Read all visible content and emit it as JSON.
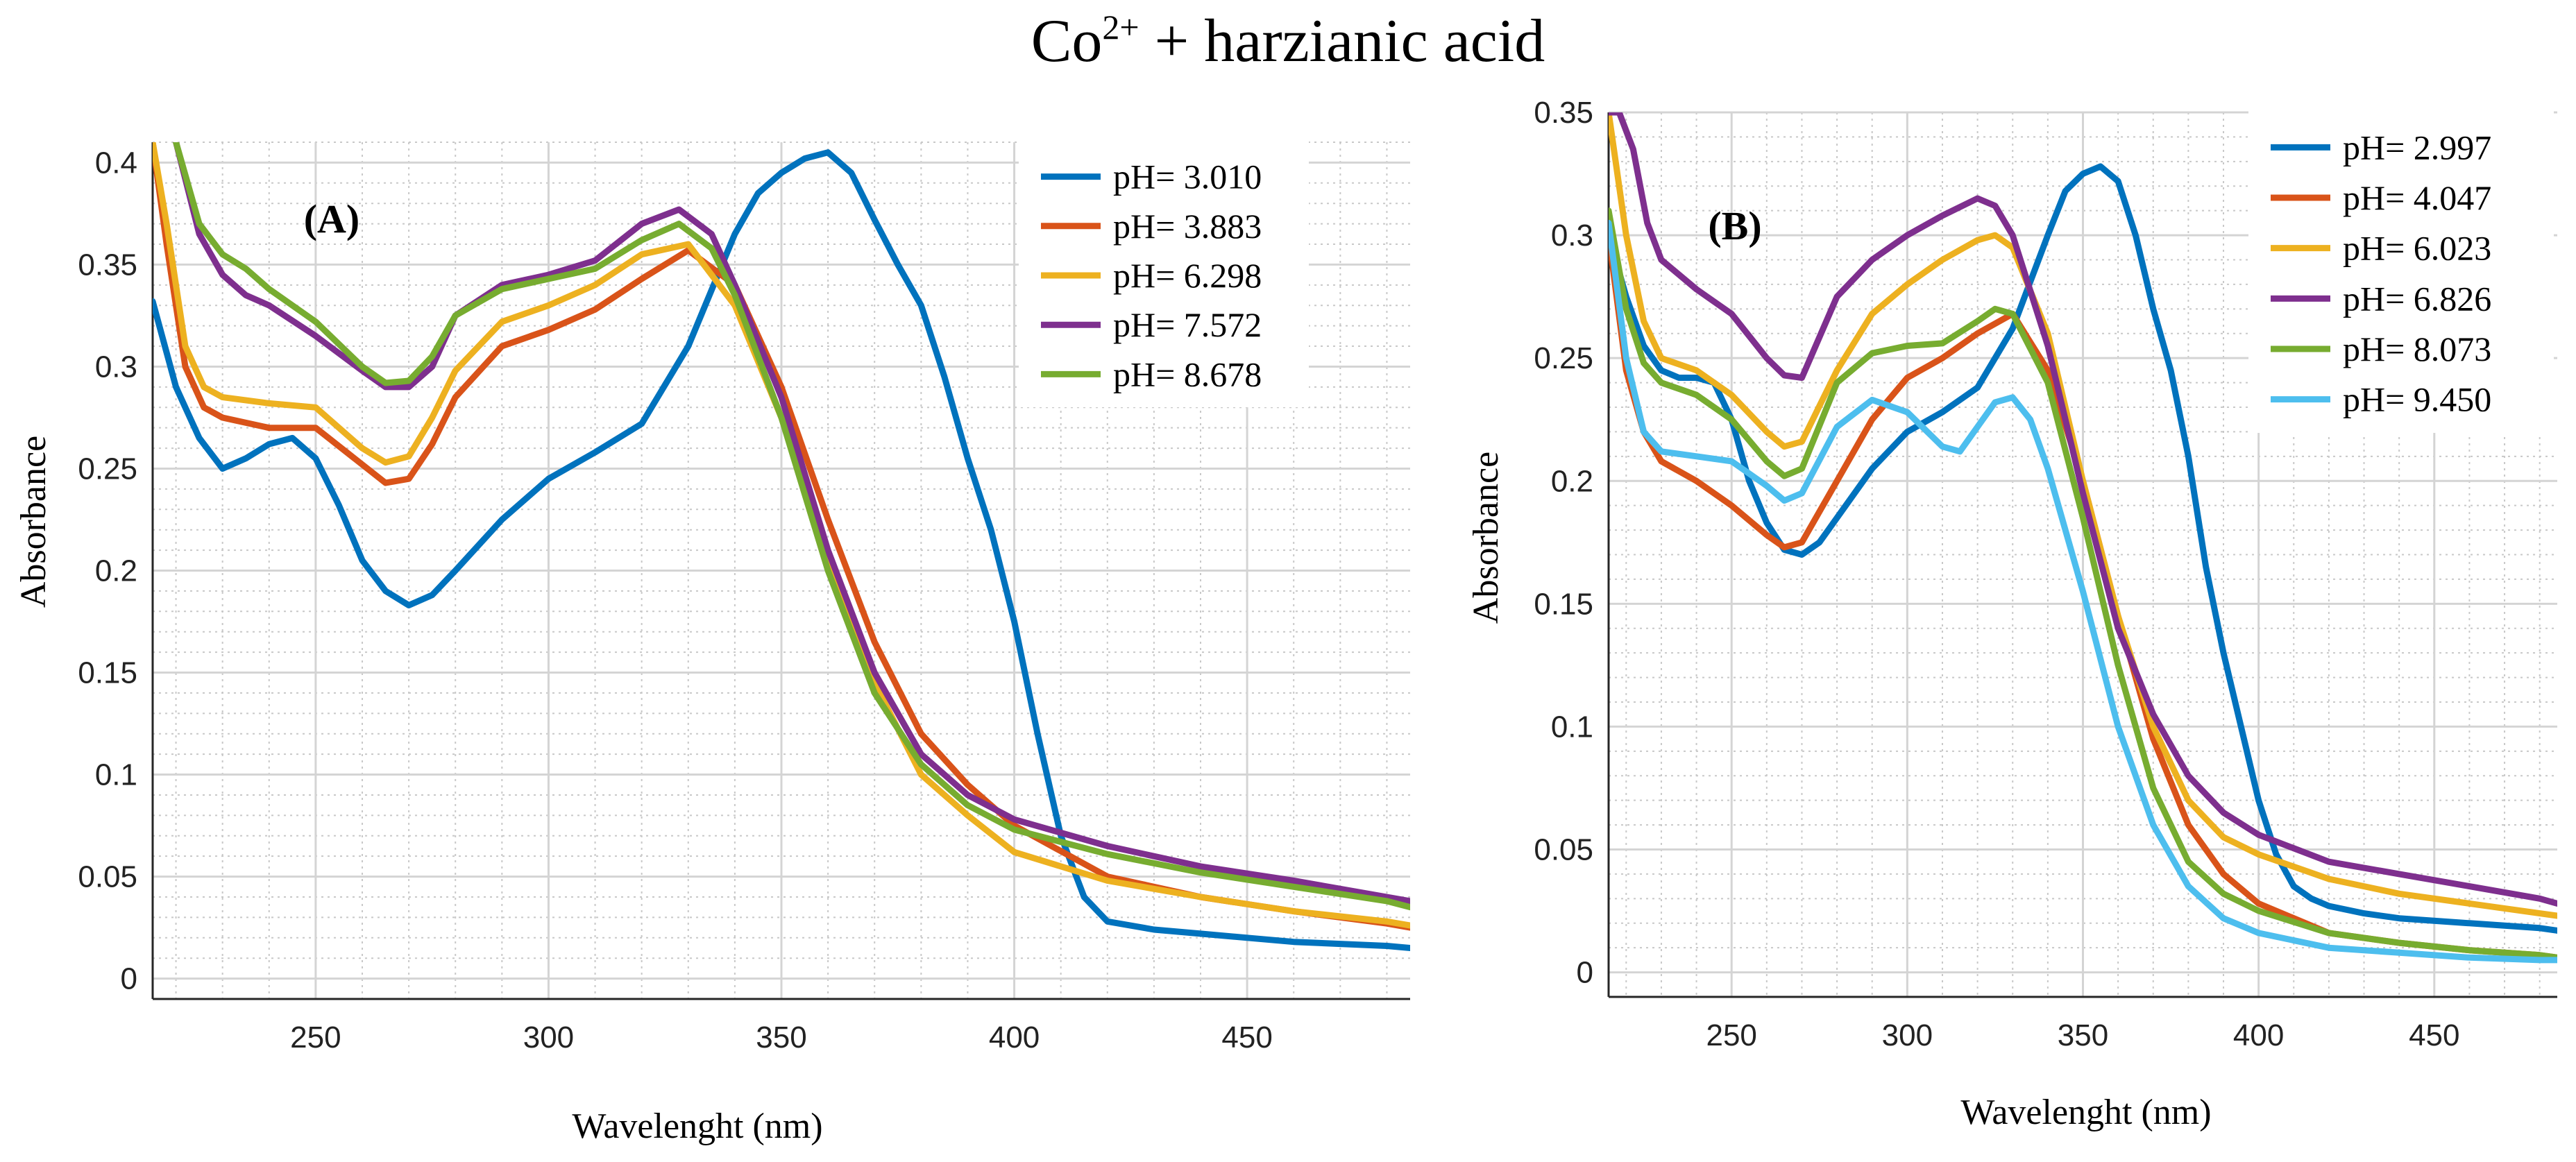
{
  "title": {
    "main": "Co",
    "sup": "2+",
    "rest": " + harzianic acid"
  },
  "chart_data": [
    {
      "type": "line",
      "panel_label": "(A)",
      "xlabel": "Wavelenght (nm)",
      "ylabel": "Absorbance",
      "xlim": [
        215,
        485
      ],
      "ylim": [
        -0.01,
        0.41
      ],
      "xticks": [
        250,
        300,
        350,
        400,
        450
      ],
      "yticks": [
        0,
        0.05,
        0.1,
        0.15,
        0.2,
        0.25,
        0.3,
        0.35,
        0.4
      ],
      "ytick_labels": [
        "0",
        "0.05",
        "0.1",
        "0.15",
        "0.2",
        "0.25",
        "0.3",
        "0.35",
        "0.4"
      ],
      "grid": true,
      "legend_position": "top-right",
      "series": [
        {
          "name": "pH= 3.010",
          "color": "#0072BD",
          "x": [
            215,
            220,
            225,
            230,
            235,
            240,
            245,
            250,
            255,
            260,
            265,
            270,
            275,
            280,
            290,
            300,
            310,
            320,
            330,
            340,
            345,
            350,
            355,
            360,
            365,
            370,
            375,
            380,
            385,
            390,
            395,
            400,
            405,
            410,
            415,
            420,
            430,
            440,
            450,
            460,
            470,
            480,
            485
          ],
          "y": [
            0.332,
            0.29,
            0.265,
            0.25,
            0.255,
            0.262,
            0.265,
            0.255,
            0.232,
            0.205,
            0.19,
            0.183,
            0.188,
            0.2,
            0.225,
            0.245,
            0.258,
            0.272,
            0.31,
            0.365,
            0.385,
            0.395,
            0.402,
            0.405,
            0.395,
            0.372,
            0.35,
            0.33,
            0.295,
            0.255,
            0.22,
            0.175,
            0.12,
            0.07,
            0.04,
            0.028,
            0.024,
            0.022,
            0.02,
            0.018,
            0.017,
            0.016,
            0.015
          ]
        },
        {
          "name": "pH= 3.883",
          "color": "#D95319",
          "x": [
            215,
            218,
            222,
            226,
            230,
            240,
            250,
            260,
            265,
            270,
            275,
            280,
            290,
            300,
            310,
            320,
            330,
            340,
            350,
            360,
            370,
            380,
            390,
            400,
            420,
            440,
            460,
            480,
            485
          ],
          "y": [
            0.41,
            0.36,
            0.3,
            0.28,
            0.275,
            0.27,
            0.27,
            0.252,
            0.243,
            0.245,
            0.262,
            0.285,
            0.31,
            0.318,
            0.328,
            0.343,
            0.357,
            0.34,
            0.29,
            0.225,
            0.165,
            0.12,
            0.095,
            0.075,
            0.05,
            0.04,
            0.033,
            0.027,
            0.025
          ]
        },
        {
          "name": "pH= 6.298",
          "color": "#EDB120",
          "x": [
            215,
            218,
            222,
            226,
            230,
            240,
            250,
            260,
            265,
            270,
            275,
            280,
            290,
            300,
            310,
            320,
            330,
            340,
            350,
            360,
            370,
            380,
            390,
            400,
            420,
            440,
            460,
            480,
            485
          ],
          "y": [
            0.41,
            0.37,
            0.31,
            0.29,
            0.285,
            0.282,
            0.28,
            0.26,
            0.253,
            0.256,
            0.275,
            0.298,
            0.322,
            0.33,
            0.34,
            0.355,
            0.36,
            0.33,
            0.275,
            0.205,
            0.145,
            0.1,
            0.08,
            0.062,
            0.048,
            0.04,
            0.033,
            0.028,
            0.026
          ]
        },
        {
          "name": "pH= 7.572",
          "color": "#7E2F8E",
          "x": [
            220,
            225,
            230,
            235,
            240,
            250,
            260,
            265,
            270,
            275,
            280,
            290,
            300,
            310,
            320,
            328,
            335,
            340,
            350,
            360,
            370,
            380,
            390,
            400,
            420,
            440,
            460,
            480,
            485
          ],
          "y": [
            0.41,
            0.365,
            0.345,
            0.335,
            0.33,
            0.315,
            0.298,
            0.29,
            0.29,
            0.3,
            0.325,
            0.34,
            0.345,
            0.352,
            0.37,
            0.377,
            0.365,
            0.34,
            0.285,
            0.21,
            0.15,
            0.11,
            0.09,
            0.078,
            0.065,
            0.055,
            0.048,
            0.04,
            0.038
          ]
        },
        {
          "name": "pH= 8.678",
          "color": "#77AC30",
          "x": [
            220,
            225,
            230,
            235,
            240,
            250,
            260,
            265,
            270,
            275,
            280,
            290,
            300,
            310,
            320,
            328,
            335,
            340,
            350,
            360,
            370,
            380,
            390,
            400,
            420,
            440,
            460,
            480,
            485
          ],
          "y": [
            0.41,
            0.37,
            0.355,
            0.348,
            0.338,
            0.322,
            0.3,
            0.292,
            0.293,
            0.305,
            0.325,
            0.338,
            0.343,
            0.348,
            0.362,
            0.37,
            0.358,
            0.335,
            0.275,
            0.2,
            0.14,
            0.105,
            0.085,
            0.073,
            0.061,
            0.052,
            0.045,
            0.038,
            0.035
          ]
        }
      ]
    },
    {
      "type": "line",
      "panel_label": "(B)",
      "xlabel": "Wavelenght (nm)",
      "ylabel": "Absorbance",
      "xlim": [
        215,
        485
      ],
      "ylim": [
        -0.01,
        0.35
      ],
      "xticks": [
        250,
        300,
        350,
        400,
        450
      ],
      "yticks": [
        0,
        0.05,
        0.1,
        0.15,
        0.2,
        0.25,
        0.3,
        0.35
      ],
      "ytick_labels": [
        "0",
        "0.05",
        "0.1",
        "0.15",
        "0.2",
        "0.25",
        "0.3",
        "0.35"
      ],
      "grid": true,
      "legend_position": "top-right",
      "series": [
        {
          "name": "pH= 2.997",
          "color": "#0072BD",
          "x": [
            215,
            220,
            225,
            230,
            235,
            240,
            245,
            250,
            255,
            260,
            265,
            270,
            275,
            280,
            290,
            300,
            310,
            320,
            330,
            340,
            345,
            350,
            355,
            360,
            365,
            370,
            375,
            380,
            385,
            390,
            395,
            400,
            405,
            410,
            415,
            420,
            430,
            440,
            460,
            480,
            485
          ],
          "y": [
            0.3,
            0.275,
            0.255,
            0.245,
            0.242,
            0.242,
            0.24,
            0.225,
            0.2,
            0.183,
            0.172,
            0.17,
            0.175,
            0.185,
            0.205,
            0.22,
            0.228,
            0.238,
            0.262,
            0.3,
            0.318,
            0.325,
            0.328,
            0.322,
            0.3,
            0.27,
            0.245,
            0.21,
            0.165,
            0.13,
            0.1,
            0.07,
            0.048,
            0.035,
            0.03,
            0.027,
            0.024,
            0.022,
            0.02,
            0.018,
            0.017
          ]
        },
        {
          "name": "pH= 4.047",
          "color": "#D95319",
          "x": [
            215,
            220,
            225,
            230,
            240,
            250,
            260,
            265,
            270,
            280,
            290,
            300,
            310,
            320,
            330,
            340,
            350,
            360,
            370,
            380,
            390,
            400,
            420,
            440,
            460,
            480,
            485
          ],
          "y": [
            0.3,
            0.245,
            0.22,
            0.208,
            0.2,
            0.19,
            0.178,
            0.173,
            0.175,
            0.2,
            0.225,
            0.242,
            0.25,
            0.26,
            0.268,
            0.245,
            0.2,
            0.145,
            0.095,
            0.06,
            0.04,
            0.028,
            0.016,
            0.012,
            0.009,
            0.007,
            0.006
          ]
        },
        {
          "name": "pH= 6.023",
          "color": "#EDB120",
          "x": [
            215,
            220,
            225,
            230,
            240,
            250,
            260,
            265,
            270,
            280,
            290,
            300,
            310,
            320,
            325,
            330,
            340,
            350,
            360,
            370,
            380,
            390,
            400,
            420,
            440,
            460,
            480,
            485
          ],
          "y": [
            0.35,
            0.3,
            0.265,
            0.25,
            0.245,
            0.235,
            0.22,
            0.214,
            0.216,
            0.245,
            0.268,
            0.28,
            0.29,
            0.298,
            0.3,
            0.295,
            0.26,
            0.2,
            0.145,
            0.1,
            0.07,
            0.055,
            0.048,
            0.038,
            0.032,
            0.028,
            0.024,
            0.023
          ]
        },
        {
          "name": "pH= 6.826",
          "color": "#7E2F8E",
          "x": [
            215,
            218,
            222,
            226,
            230,
            240,
            250,
            260,
            265,
            270,
            280,
            290,
            300,
            310,
            320,
            325,
            330,
            340,
            350,
            360,
            370,
            380,
            390,
            400,
            420,
            440,
            460,
            480,
            485
          ],
          "y": [
            0.35,
            0.35,
            0.335,
            0.305,
            0.29,
            0.278,
            0.268,
            0.25,
            0.243,
            0.242,
            0.275,
            0.29,
            0.3,
            0.308,
            0.315,
            0.312,
            0.3,
            0.255,
            0.195,
            0.14,
            0.105,
            0.08,
            0.065,
            0.056,
            0.045,
            0.04,
            0.035,
            0.03,
            0.028
          ]
        },
        {
          "name": "pH= 8.073",
          "color": "#77AC30",
          "x": [
            215,
            220,
            225,
            230,
            240,
            250,
            260,
            265,
            270,
            280,
            290,
            300,
            310,
            320,
            325,
            330,
            340,
            350,
            360,
            370,
            380,
            390,
            400,
            420,
            440,
            460,
            480,
            485
          ],
          "y": [
            0.31,
            0.27,
            0.248,
            0.24,
            0.235,
            0.225,
            0.208,
            0.202,
            0.205,
            0.24,
            0.252,
            0.255,
            0.256,
            0.265,
            0.27,
            0.268,
            0.24,
            0.185,
            0.125,
            0.075,
            0.045,
            0.032,
            0.025,
            0.016,
            0.012,
            0.009,
            0.007,
            0.006
          ]
        },
        {
          "name": "pH= 9.450",
          "color": "#4DBEEE",
          "x": [
            215,
            220,
            225,
            230,
            240,
            250,
            260,
            265,
            270,
            280,
            290,
            300,
            310,
            315,
            320,
            325,
            330,
            335,
            340,
            350,
            360,
            370,
            380,
            390,
            400,
            420,
            440,
            460,
            480,
            485
          ],
          "y": [
            0.305,
            0.25,
            0.22,
            0.212,
            0.21,
            0.208,
            0.198,
            0.192,
            0.195,
            0.222,
            0.233,
            0.228,
            0.214,
            0.212,
            0.222,
            0.232,
            0.234,
            0.225,
            0.205,
            0.155,
            0.1,
            0.06,
            0.035,
            0.022,
            0.016,
            0.01,
            0.008,
            0.006,
            0.005,
            0.005
          ]
        }
      ]
    }
  ]
}
